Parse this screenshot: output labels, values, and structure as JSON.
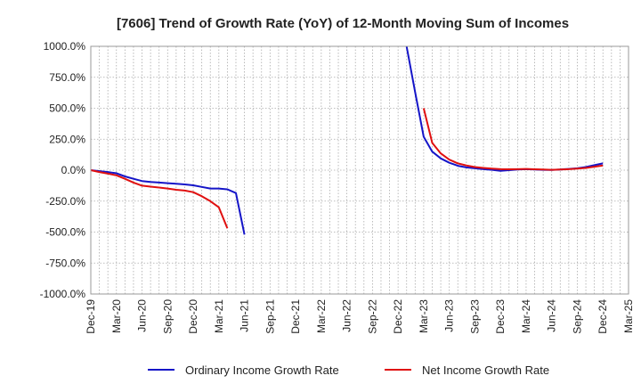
{
  "chart_data": {
    "type": "line",
    "title": "[7606]  Trend of Growth Rate (YoY) of 12-Month Moving Sum of Incomes",
    "xlabel": "",
    "ylabel": "",
    "x_tick_labels": [
      "Dec-19",
      "Mar-20",
      "Jun-20",
      "Sep-20",
      "Dec-20",
      "Mar-21",
      "Jun-21",
      "Sep-21",
      "Dec-21",
      "Mar-22",
      "Jun-22",
      "Sep-22",
      "Dec-22",
      "Mar-23",
      "Jun-23",
      "Sep-23",
      "Dec-23",
      "Mar-24",
      "Jun-24",
      "Sep-24",
      "Dec-24",
      "Mar-25"
    ],
    "y_tick_labels": [
      "1000.0%",
      "750.0%",
      "500.0%",
      "250.0%",
      "0.0%",
      "-250.0%",
      "-500.0%",
      "-750.0%",
      "-1000.0%"
    ],
    "ylim": [
      -1000,
      1000
    ],
    "y_unit": "%",
    "grid": true,
    "legend_position": "bottom",
    "series": [
      {
        "name": "Ordinary Income Growth Rate",
        "color": "#1515c8",
        "points": [
          [
            "Dec-19",
            0
          ],
          [
            "Jan-20",
            -8
          ],
          [
            "Feb-20",
            -15
          ],
          [
            "Mar-20",
            -25
          ],
          [
            "Apr-20",
            -50
          ],
          [
            "May-20",
            -70
          ],
          [
            "Jun-20",
            -88
          ],
          [
            "Jul-20",
            -95
          ],
          [
            "Aug-20",
            -100
          ],
          [
            "Sep-20",
            -105
          ],
          [
            "Oct-20",
            -110
          ],
          [
            "Nov-20",
            -115
          ],
          [
            "Dec-20",
            -122
          ],
          [
            "Jan-21",
            -135
          ],
          [
            "Feb-21",
            -148
          ],
          [
            "Mar-21",
            -148
          ],
          [
            "Apr-21",
            -155
          ],
          [
            "May-21",
            -185
          ],
          [
            "Jun-21",
            -520
          ],
          [
            "Jan-23",
            1000
          ],
          [
            "Feb-23",
            630
          ],
          [
            "Mar-23",
            270
          ],
          [
            "Apr-23",
            150
          ],
          [
            "May-23",
            95
          ],
          [
            "Jun-23",
            60
          ],
          [
            "Jul-23",
            35
          ],
          [
            "Aug-23",
            22
          ],
          [
            "Sep-23",
            15
          ],
          [
            "Oct-23",
            8
          ],
          [
            "Nov-23",
            3
          ],
          [
            "Dec-23",
            -5
          ],
          [
            "Jan-24",
            0
          ],
          [
            "Feb-24",
            5
          ],
          [
            "Mar-24",
            8
          ],
          [
            "Apr-24",
            5
          ],
          [
            "May-24",
            3
          ],
          [
            "Jun-24",
            2
          ],
          [
            "Jul-24",
            5
          ],
          [
            "Aug-24",
            10
          ],
          [
            "Sep-24",
            15
          ],
          [
            "Oct-24",
            25
          ],
          [
            "Nov-24",
            40
          ],
          [
            "Dec-24",
            55
          ]
        ]
      },
      {
        "name": "Net Income Growth Rate",
        "color": "#e01010",
        "points": [
          [
            "Dec-19",
            0
          ],
          [
            "Jan-20",
            -15
          ],
          [
            "Feb-20",
            -28
          ],
          [
            "Mar-20",
            -42
          ],
          [
            "Apr-20",
            -70
          ],
          [
            "May-20",
            -100
          ],
          [
            "Jun-20",
            -125
          ],
          [
            "Jul-20",
            -133
          ],
          [
            "Aug-20",
            -140
          ],
          [
            "Sep-20",
            -148
          ],
          [
            "Oct-20",
            -158
          ],
          [
            "Nov-20",
            -165
          ],
          [
            "Dec-20",
            -178
          ],
          [
            "Jan-21",
            -210
          ],
          [
            "Feb-21",
            -250
          ],
          [
            "Mar-21",
            -300
          ],
          [
            "Apr-21",
            -470
          ],
          [
            "Mar-23",
            500
          ],
          [
            "Apr-23",
            220
          ],
          [
            "May-23",
            135
          ],
          [
            "Jun-23",
            85
          ],
          [
            "Jul-23",
            55
          ],
          [
            "Aug-23",
            38
          ],
          [
            "Sep-23",
            25
          ],
          [
            "Oct-23",
            18
          ],
          [
            "Nov-23",
            12
          ],
          [
            "Dec-23",
            8
          ],
          [
            "Jan-24",
            7
          ],
          [
            "Feb-24",
            8
          ],
          [
            "Mar-24",
            10
          ],
          [
            "Apr-24",
            7
          ],
          [
            "May-24",
            5
          ],
          [
            "Jun-24",
            3
          ],
          [
            "Jul-24",
            5
          ],
          [
            "Aug-24",
            8
          ],
          [
            "Sep-24",
            12
          ],
          [
            "Oct-24",
            18
          ],
          [
            "Nov-24",
            28
          ],
          [
            "Dec-24",
            38
          ]
        ]
      }
    ]
  }
}
